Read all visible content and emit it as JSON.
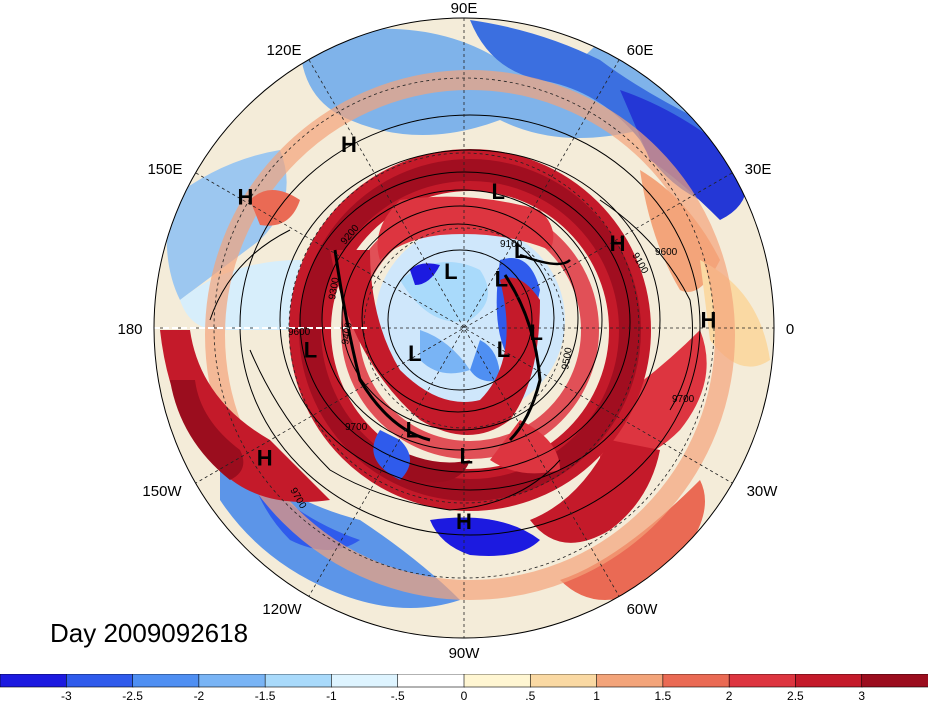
{
  "title": "Day 2009092618",
  "longitude_labels": [
    "90E",
    "60E",
    "30E",
    "0",
    "30W",
    "60W",
    "90W",
    "120W",
    "150W",
    "180",
    "150E",
    "120E"
  ],
  "contour_labels": [
    "9100",
    "9100",
    "9200",
    "9300",
    "9400",
    "9500",
    "9600",
    "9600",
    "9700",
    "9700",
    "9700"
  ],
  "pressure_centers": [
    {
      "type": "L",
      "lon": 104,
      "lat": 49
    },
    {
      "type": "H",
      "lon": 58,
      "lat": 27
    },
    {
      "type": "H",
      "lon": 31,
      "lat": 16
    },
    {
      "type": "H",
      "lon": 178,
      "lat": 19
    },
    {
      "type": "H",
      "lon": 151,
      "lat": 39
    },
    {
      "type": "L",
      "lon": 126,
      "lat": 62
    },
    {
      "type": "L",
      "lon": 127,
      "lat": 72
    },
    {
      "type": "L",
      "lon": 77,
      "lat": 73
    },
    {
      "type": "L",
      "lon": 183,
      "lat": 69
    },
    {
      "type": "L",
      "lon": 208,
      "lat": 77
    },
    {
      "type": "L",
      "lon": 333,
      "lat": 74
    },
    {
      "type": "L",
      "lon": 352,
      "lat": 45
    },
    {
      "type": "H",
      "lon": 327,
      "lat": 21
    },
    {
      "type": "L",
      "lon": 297,
      "lat": 57
    },
    {
      "type": "L",
      "lon": 269,
      "lat": 53
    },
    {
      "type": "H",
      "lon": 270,
      "lat": 34
    }
  ],
  "colorbar": {
    "labels": [
      "-3",
      "-2.5",
      "-2",
      "-1.5",
      "-1",
      "-.5",
      "0",
      ".5",
      "1",
      "1.5",
      "2",
      "2.5",
      "3"
    ],
    "colors": [
      "#1c1ae0",
      "#2f5bec",
      "#4f8ff2",
      "#79b4f5",
      "#a9dafb",
      "#def4ff",
      "#ffffff",
      "#fff6d2",
      "#fad9a3",
      "#f3a47a",
      "#ea6a54",
      "#dd3540",
      "#c41a2a",
      "#9b0d1e"
    ]
  }
}
